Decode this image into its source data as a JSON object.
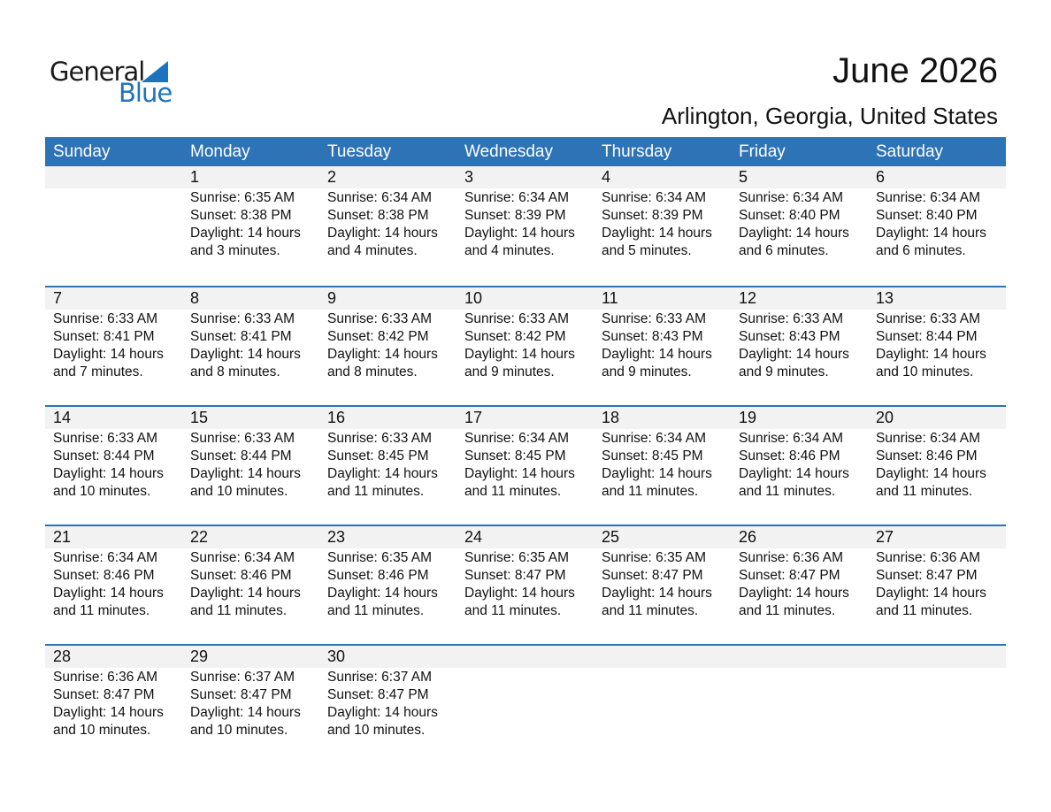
{
  "logo": {
    "text_top": "General",
    "text_bottom": "Blue",
    "color": "#1e73be"
  },
  "title": "June 2026",
  "subtitle": "Arlington, Georgia, United States",
  "header_color": "#2e73b5",
  "weekdays": [
    "Sunday",
    "Monday",
    "Tuesday",
    "Wednesday",
    "Thursday",
    "Friday",
    "Saturday"
  ],
  "weeks": [
    [
      null,
      {
        "day": "1",
        "sunrise": "Sunrise: 6:35 AM",
        "sunset": "Sunset: 8:38 PM",
        "daylight": "Daylight: 14 hours",
        "minutes": "and 3 minutes."
      },
      {
        "day": "2",
        "sunrise": "Sunrise: 6:34 AM",
        "sunset": "Sunset: 8:38 PM",
        "daylight": "Daylight: 14 hours",
        "minutes": "and 4 minutes."
      },
      {
        "day": "3",
        "sunrise": "Sunrise: 6:34 AM",
        "sunset": "Sunset: 8:39 PM",
        "daylight": "Daylight: 14 hours",
        "minutes": "and 4 minutes."
      },
      {
        "day": "4",
        "sunrise": "Sunrise: 6:34 AM",
        "sunset": "Sunset: 8:39 PM",
        "daylight": "Daylight: 14 hours",
        "minutes": "and 5 minutes."
      },
      {
        "day": "5",
        "sunrise": "Sunrise: 6:34 AM",
        "sunset": "Sunset: 8:40 PM",
        "daylight": "Daylight: 14 hours",
        "minutes": "and 6 minutes."
      },
      {
        "day": "6",
        "sunrise": "Sunrise: 6:34 AM",
        "sunset": "Sunset: 8:40 PM",
        "daylight": "Daylight: 14 hours",
        "minutes": "and 6 minutes."
      }
    ],
    [
      {
        "day": "7",
        "sunrise": "Sunrise: 6:33 AM",
        "sunset": "Sunset: 8:41 PM",
        "daylight": "Daylight: 14 hours",
        "minutes": "and 7 minutes."
      },
      {
        "day": "8",
        "sunrise": "Sunrise: 6:33 AM",
        "sunset": "Sunset: 8:41 PM",
        "daylight": "Daylight: 14 hours",
        "minutes": "and 8 minutes."
      },
      {
        "day": "9",
        "sunrise": "Sunrise: 6:33 AM",
        "sunset": "Sunset: 8:42 PM",
        "daylight": "Daylight: 14 hours",
        "minutes": "and 8 minutes."
      },
      {
        "day": "10",
        "sunrise": "Sunrise: 6:33 AM",
        "sunset": "Sunset: 8:42 PM",
        "daylight": "Daylight: 14 hours",
        "minutes": "and 9 minutes."
      },
      {
        "day": "11",
        "sunrise": "Sunrise: 6:33 AM",
        "sunset": "Sunset: 8:43 PM",
        "daylight": "Daylight: 14 hours",
        "minutes": "and 9 minutes."
      },
      {
        "day": "12",
        "sunrise": "Sunrise: 6:33 AM",
        "sunset": "Sunset: 8:43 PM",
        "daylight": "Daylight: 14 hours",
        "minutes": "and 9 minutes."
      },
      {
        "day": "13",
        "sunrise": "Sunrise: 6:33 AM",
        "sunset": "Sunset: 8:44 PM",
        "daylight": "Daylight: 14 hours",
        "minutes": "and 10 minutes."
      }
    ],
    [
      {
        "day": "14",
        "sunrise": "Sunrise: 6:33 AM",
        "sunset": "Sunset: 8:44 PM",
        "daylight": "Daylight: 14 hours",
        "minutes": "and 10 minutes."
      },
      {
        "day": "15",
        "sunrise": "Sunrise: 6:33 AM",
        "sunset": "Sunset: 8:44 PM",
        "daylight": "Daylight: 14 hours",
        "minutes": "and 10 minutes."
      },
      {
        "day": "16",
        "sunrise": "Sunrise: 6:33 AM",
        "sunset": "Sunset: 8:45 PM",
        "daylight": "Daylight: 14 hours",
        "minutes": "and 11 minutes."
      },
      {
        "day": "17",
        "sunrise": "Sunrise: 6:34 AM",
        "sunset": "Sunset: 8:45 PM",
        "daylight": "Daylight: 14 hours",
        "minutes": "and 11 minutes."
      },
      {
        "day": "18",
        "sunrise": "Sunrise: 6:34 AM",
        "sunset": "Sunset: 8:45 PM",
        "daylight": "Daylight: 14 hours",
        "minutes": "and 11 minutes."
      },
      {
        "day": "19",
        "sunrise": "Sunrise: 6:34 AM",
        "sunset": "Sunset: 8:46 PM",
        "daylight": "Daylight: 14 hours",
        "minutes": "and 11 minutes."
      },
      {
        "day": "20",
        "sunrise": "Sunrise: 6:34 AM",
        "sunset": "Sunset: 8:46 PM",
        "daylight": "Daylight: 14 hours",
        "minutes": "and 11 minutes."
      }
    ],
    [
      {
        "day": "21",
        "sunrise": "Sunrise: 6:34 AM",
        "sunset": "Sunset: 8:46 PM",
        "daylight": "Daylight: 14 hours",
        "minutes": "and 11 minutes."
      },
      {
        "day": "22",
        "sunrise": "Sunrise: 6:34 AM",
        "sunset": "Sunset: 8:46 PM",
        "daylight": "Daylight: 14 hours",
        "minutes": "and 11 minutes."
      },
      {
        "day": "23",
        "sunrise": "Sunrise: 6:35 AM",
        "sunset": "Sunset: 8:46 PM",
        "daylight": "Daylight: 14 hours",
        "minutes": "and 11 minutes."
      },
      {
        "day": "24",
        "sunrise": "Sunrise: 6:35 AM",
        "sunset": "Sunset: 8:47 PM",
        "daylight": "Daylight: 14 hours",
        "minutes": "and 11 minutes."
      },
      {
        "day": "25",
        "sunrise": "Sunrise: 6:35 AM",
        "sunset": "Sunset: 8:47 PM",
        "daylight": "Daylight: 14 hours",
        "minutes": "and 11 minutes."
      },
      {
        "day": "26",
        "sunrise": "Sunrise: 6:36 AM",
        "sunset": "Sunset: 8:47 PM",
        "daylight": "Daylight: 14 hours",
        "minutes": "and 11 minutes."
      },
      {
        "day": "27",
        "sunrise": "Sunrise: 6:36 AM",
        "sunset": "Sunset: 8:47 PM",
        "daylight": "Daylight: 14 hours",
        "minutes": "and 11 minutes."
      }
    ],
    [
      {
        "day": "28",
        "sunrise": "Sunrise: 6:36 AM",
        "sunset": "Sunset: 8:47 PM",
        "daylight": "Daylight: 14 hours",
        "minutes": "and 10 minutes."
      },
      {
        "day": "29",
        "sunrise": "Sunrise: 6:37 AM",
        "sunset": "Sunset: 8:47 PM",
        "daylight": "Daylight: 14 hours",
        "minutes": "and 10 minutes."
      },
      {
        "day": "30",
        "sunrise": "Sunrise: 6:37 AM",
        "sunset": "Sunset: 8:47 PM",
        "daylight": "Daylight: 14 hours",
        "minutes": "and 10 minutes."
      },
      null,
      null,
      null,
      null
    ]
  ]
}
